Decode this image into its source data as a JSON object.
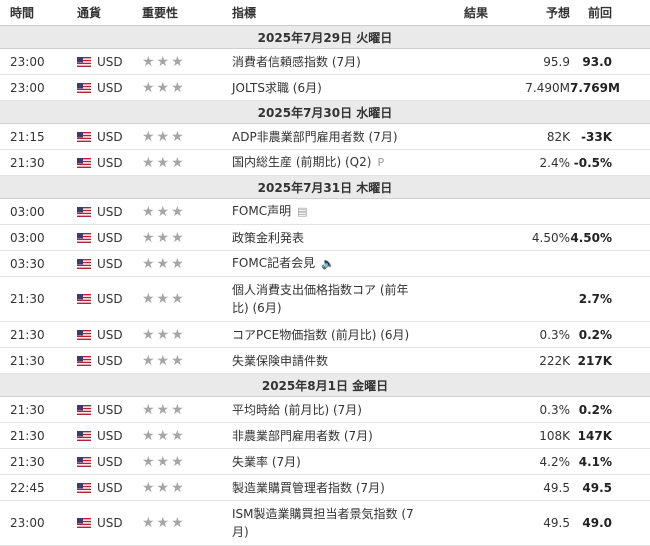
{
  "headers": {
    "time": "時間",
    "currency": "通貨",
    "importance": "重要性",
    "indicator": "指標",
    "actual": "結果",
    "forecast": "予想",
    "previous": "前回"
  },
  "stars": "★★★",
  "colors": {
    "day_bg": "#eaeaea",
    "star": "#a6a6a6"
  },
  "days": [
    {
      "label": "2025年7月29日 火曜日",
      "events": [
        {
          "time": "23:00",
          "currency": "USD",
          "indicator": "消費者信頼感指数 (7月)",
          "actual": "",
          "forecast": "95.9",
          "previous": "93.0",
          "rows": 1,
          "icon": ""
        },
        {
          "time": "23:00",
          "currency": "USD",
          "indicator": "JOLTS求職 (6月)",
          "actual": "",
          "forecast": "7.490M",
          "previous": "7.769M",
          "rows": 1,
          "icon": ""
        }
      ]
    },
    {
      "label": "2025年7月30日 水曜日",
      "events": [
        {
          "time": "21:15",
          "currency": "USD",
          "indicator": "ADP非農業部門雇用者数 (7月)",
          "actual": "",
          "forecast": "82K",
          "previous": "-33K",
          "rows": 1,
          "icon": ""
        },
        {
          "time": "21:30",
          "currency": "USD",
          "indicator": "国内総生産 (前期比) (Q2)",
          "actual": "",
          "forecast": "2.4%",
          "previous": "-0.5%",
          "rows": 1,
          "icon": "preliminary-icon"
        }
      ]
    },
    {
      "label": "2025年7月31日 木曜日",
      "events": [
        {
          "time": "03:00",
          "currency": "USD",
          "indicator": "FOMC声明",
          "actual": "",
          "forecast": "",
          "previous": "",
          "rows": 1,
          "icon": "document-icon"
        },
        {
          "time": "03:00",
          "currency": "USD",
          "indicator": "政策金利発表",
          "actual": "",
          "forecast": "4.50%",
          "previous": "4.50%",
          "rows": 1,
          "icon": ""
        },
        {
          "time": "03:30",
          "currency": "USD",
          "indicator": "FOMC記者会見",
          "actual": "",
          "forecast": "",
          "previous": "",
          "rows": 1,
          "icon": "speaker-icon"
        },
        {
          "time": "21:30",
          "currency": "USD",
          "indicator": "個人消費支出価格指数コア (前年比) (6月)",
          "actual": "",
          "forecast": "",
          "previous": "2.7%",
          "rows": 2,
          "icon": ""
        },
        {
          "time": "21:30",
          "currency": "USD",
          "indicator": "コアPCE物価指数 (前月比) (6月)",
          "actual": "",
          "forecast": "0.3%",
          "previous": "0.2%",
          "rows": 1,
          "icon": ""
        },
        {
          "time": "21:30",
          "currency": "USD",
          "indicator": "失業保険申請件数",
          "actual": "",
          "forecast": "222K",
          "previous": "217K",
          "rows": 1,
          "icon": ""
        }
      ]
    },
    {
      "label": "2025年8月1日 金曜日",
      "events": [
        {
          "time": "21:30",
          "currency": "USD",
          "indicator": "平均時給 (前月比) (7月)",
          "actual": "",
          "forecast": "0.3%",
          "previous": "0.2%",
          "rows": 1,
          "icon": ""
        },
        {
          "time": "21:30",
          "currency": "USD",
          "indicator": "非農業部門雇用者数 (7月)",
          "actual": "",
          "forecast": "108K",
          "previous": "147K",
          "rows": 1,
          "icon": ""
        },
        {
          "time": "21:30",
          "currency": "USD",
          "indicator": "失業率 (7月)",
          "actual": "",
          "forecast": "4.2%",
          "previous": "4.1%",
          "rows": 1,
          "icon": ""
        },
        {
          "time": "22:45",
          "currency": "USD",
          "indicator": "製造業購買管理者指数 (7月)",
          "actual": "",
          "forecast": "49.5",
          "previous": "49.5",
          "rows": 1,
          "icon": ""
        },
        {
          "time": "23:00",
          "currency": "USD",
          "indicator": "ISM製造業購買担当者景気指数 (7月)",
          "actual": "",
          "forecast": "49.5",
          "previous": "49.0",
          "rows": 2,
          "icon": ""
        }
      ]
    }
  ]
}
